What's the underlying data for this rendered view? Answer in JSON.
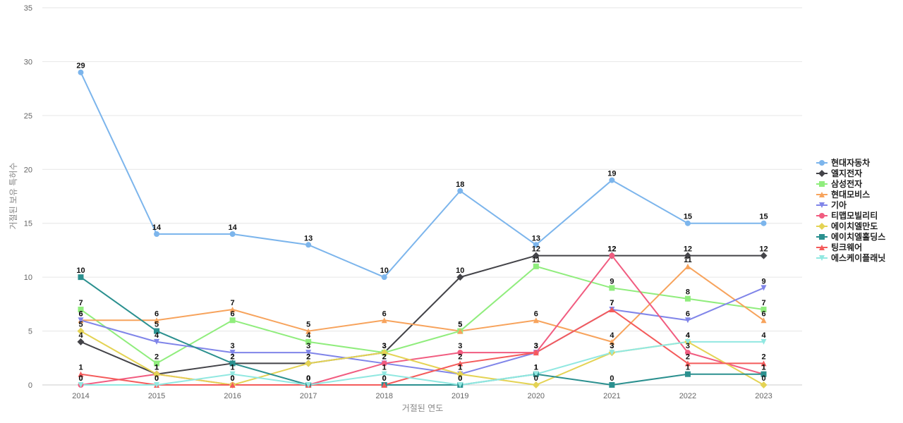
{
  "chart_data": {
    "type": "line",
    "xlabel": "거절된 연도",
    "ylabel": "거절된 보유 특허수",
    "ylim": [
      0,
      35
    ],
    "yticks": [
      0,
      5,
      10,
      15,
      20,
      25,
      30,
      35
    ],
    "x": [
      "2014",
      "2015",
      "2016",
      "2017",
      "2018",
      "2019",
      "2020",
      "2021",
      "2022",
      "2023"
    ],
    "grid": "horizontal",
    "legend_position": "right",
    "series": [
      {
        "name": "현대자동차",
        "color": "#7cb5ec",
        "marker": "circle",
        "values": [
          29,
          14,
          14,
          13,
          10,
          18,
          13,
          19,
          15,
          15
        ]
      },
      {
        "name": "엘지전자",
        "color": "#434348",
        "marker": "diamond",
        "values": [
          4,
          1,
          2,
          2,
          3,
          10,
          12,
          12,
          12,
          12
        ]
      },
      {
        "name": "삼성전자",
        "color": "#90ed7d",
        "marker": "square",
        "values": [
          7,
          2,
          6,
          4,
          3,
          5,
          11,
          9,
          8,
          7
        ]
      },
      {
        "name": "현대모비스",
        "color": "#f7a35c",
        "marker": "triangle",
        "values": [
          6,
          6,
          7,
          5,
          6,
          5,
          6,
          4,
          11,
          6
        ]
      },
      {
        "name": "기아",
        "color": "#8085e9",
        "marker": "triangle-down",
        "values": [
          6,
          4,
          3,
          3,
          2,
          1,
          3,
          7,
          6,
          9
        ]
      },
      {
        "name": "티맵모빌리티",
        "color": "#f15c80",
        "marker": "circle",
        "values": [
          0,
          1,
          0,
          0,
          2,
          3,
          3,
          12,
          3,
          1
        ]
      },
      {
        "name": "에이치엘만도",
        "color": "#e4d354",
        "marker": "diamond",
        "values": [
          5,
          1,
          0,
          2,
          3,
          1,
          0,
          3,
          4,
          0
        ]
      },
      {
        "name": "에이치엘홀딩스",
        "color": "#2b908f",
        "marker": "square",
        "values": [
          10,
          5,
          2,
          0,
          0,
          0,
          1,
          0,
          1,
          1
        ]
      },
      {
        "name": "팅크웨어",
        "color": "#f45b5b",
        "marker": "triangle",
        "values": [
          1,
          0,
          0,
          0,
          0,
          2,
          3,
          7,
          2,
          2
        ]
      },
      {
        "name": "에스케이플래닛",
        "color": "#91e8e1",
        "marker": "triangle-down",
        "values": [
          0,
          0,
          1,
          0,
          1,
          0,
          1,
          3,
          4,
          4
        ]
      }
    ]
  }
}
